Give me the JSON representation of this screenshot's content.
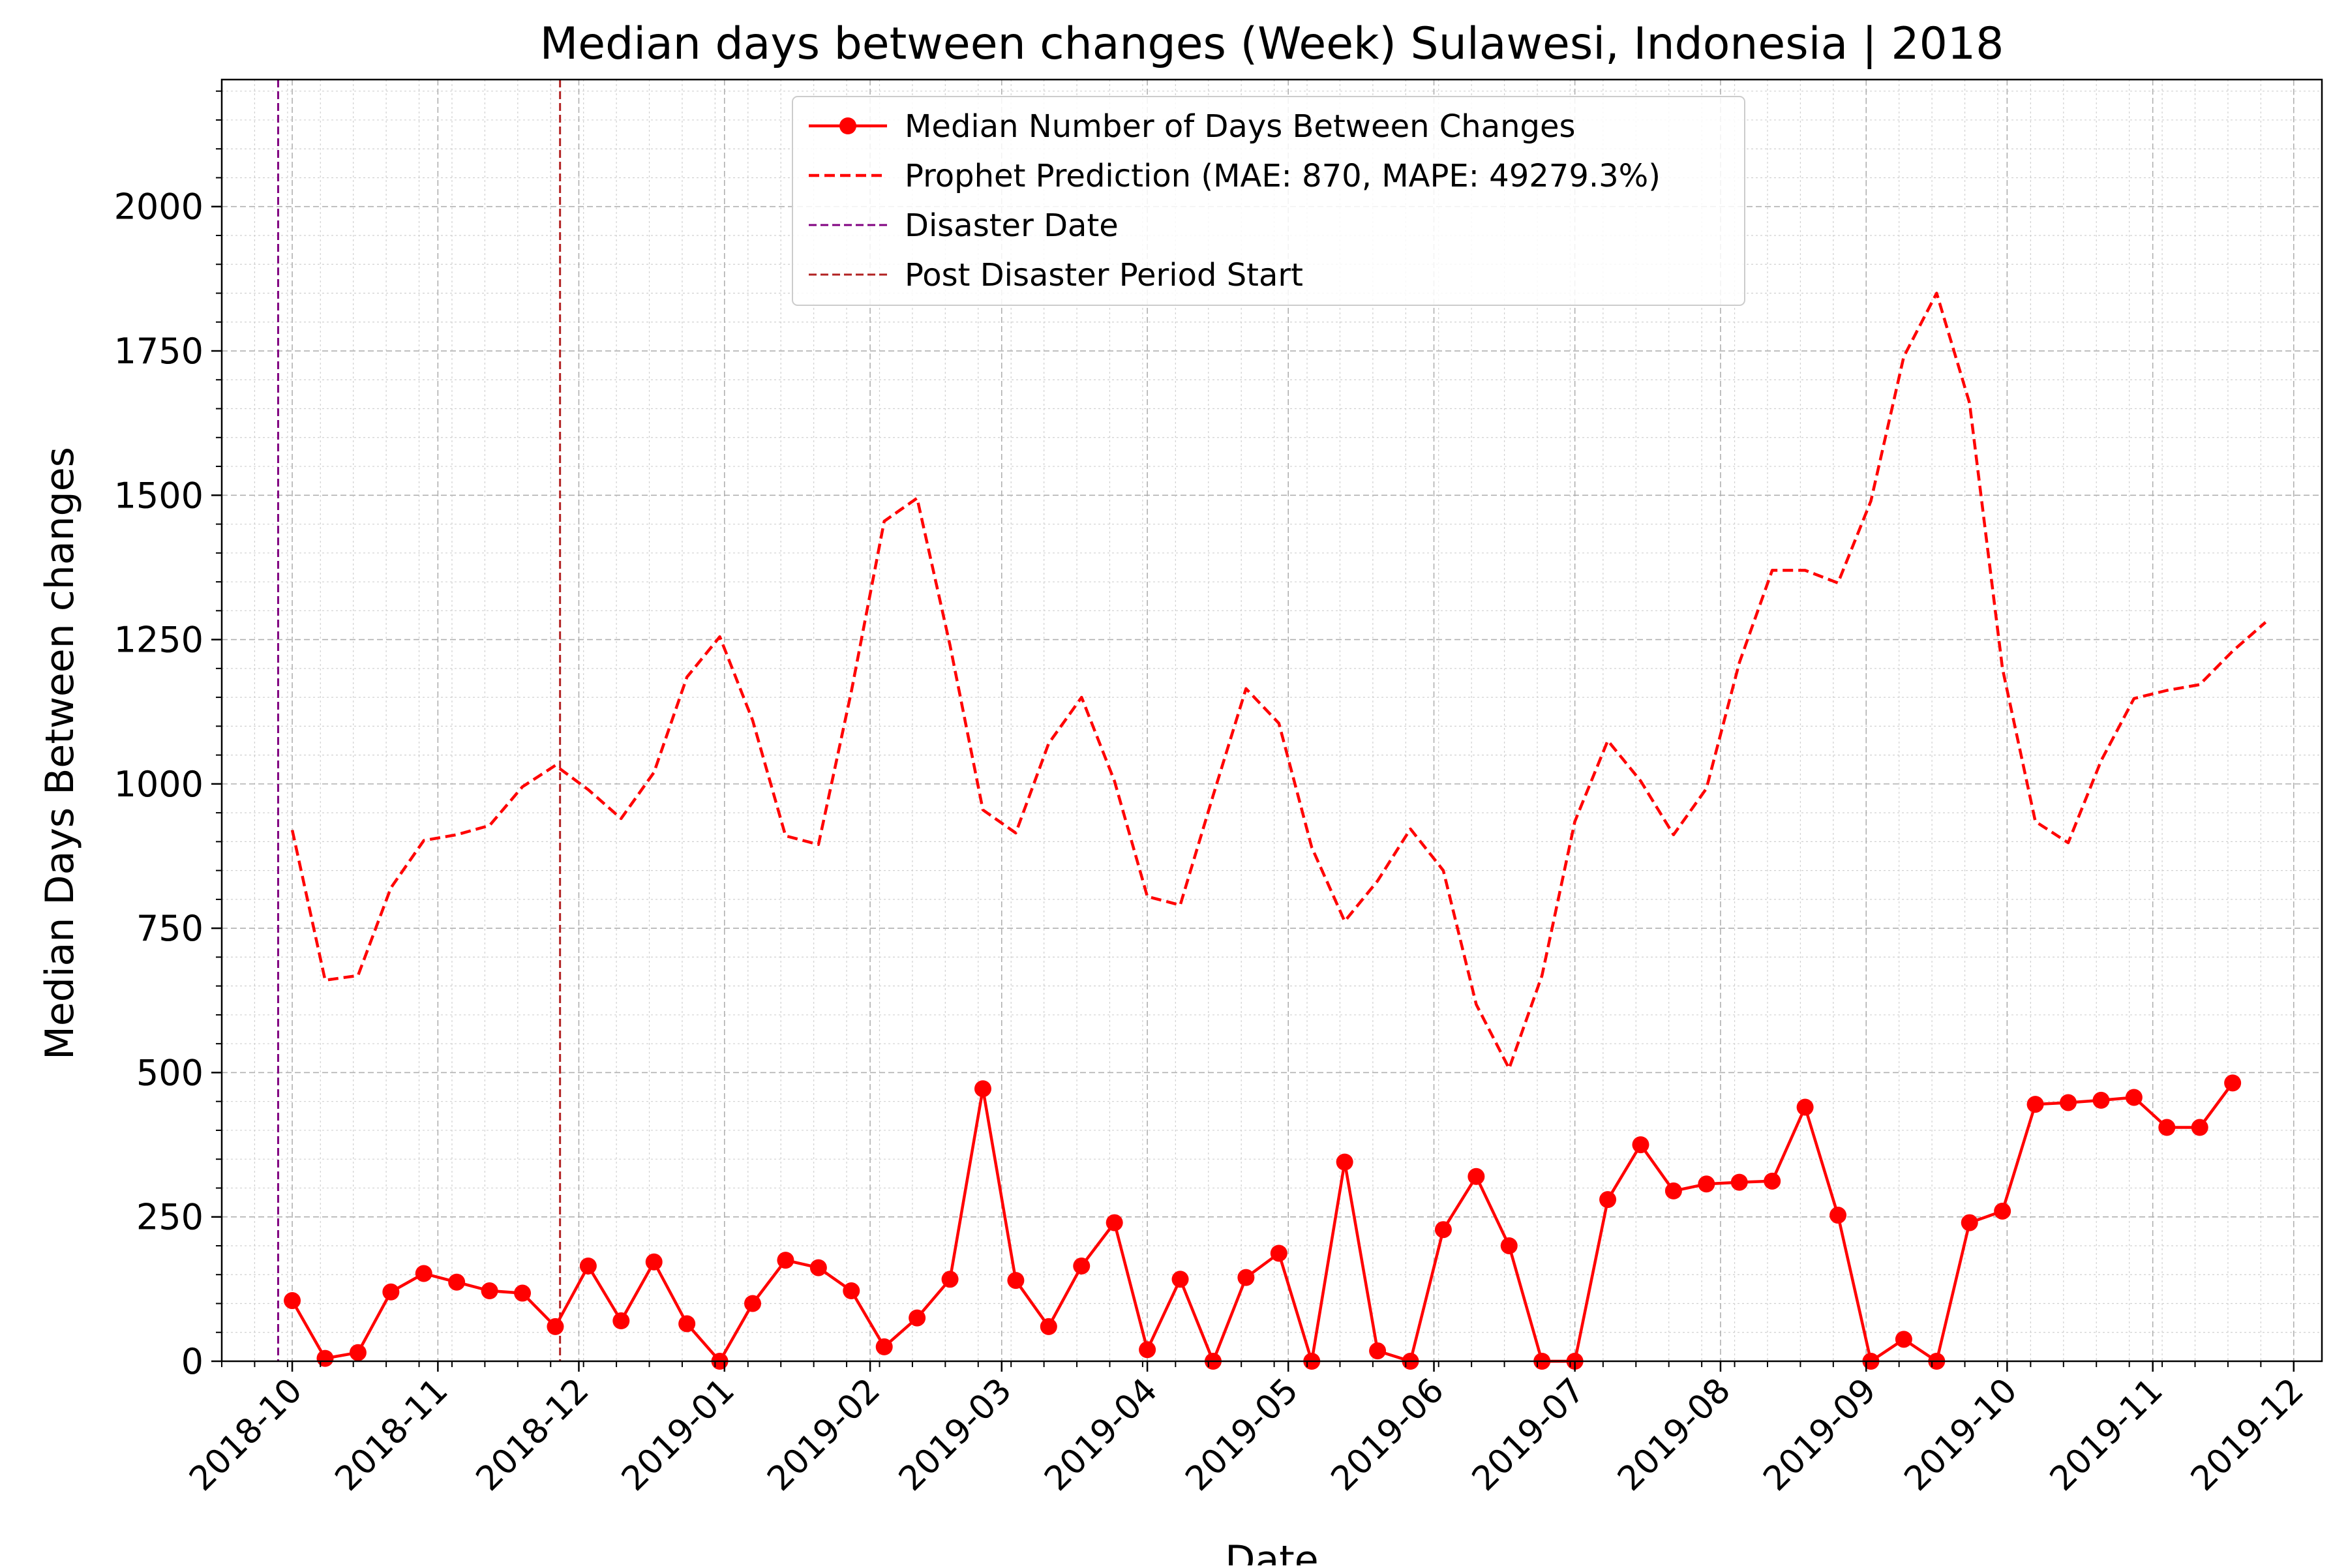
{
  "chart_data": {
    "type": "line",
    "title": "Median days between changes (Week) Sulawesi, Indonesia | 2018",
    "xlabel": "Date",
    "ylabel": "Median Days Between changes",
    "xlim": [
      "2018-09-16",
      "2019-12-07"
    ],
    "ylim": [
      0,
      2220
    ],
    "x_ticks": [
      "2018-10",
      "2018-11",
      "2018-12",
      "2019-01",
      "2019-02",
      "2019-03",
      "2019-04",
      "2019-05",
      "2019-06",
      "2019-07",
      "2019-08",
      "2019-09",
      "2019-10",
      "2019-11",
      "2019-12"
    ],
    "y_ticks": [
      0,
      250,
      500,
      750,
      1000,
      1250,
      1500,
      1750,
      2000
    ],
    "grid": true,
    "legend_position": "top-center",
    "series": [
      {
        "name": "Median Number of Days Between Changes",
        "style": "solid-with-markers",
        "color": "#ff0000",
        "x": [
          "2018-10-01",
          "2018-10-08",
          "2018-10-15",
          "2018-10-22",
          "2018-10-29",
          "2018-11-05",
          "2018-11-12",
          "2018-11-19",
          "2018-11-26",
          "2018-12-03",
          "2018-12-10",
          "2018-12-17",
          "2018-12-24",
          "2018-12-31",
          "2019-01-07",
          "2019-01-14",
          "2019-01-21",
          "2019-01-28",
          "2019-02-04",
          "2019-02-11",
          "2019-02-18",
          "2019-02-25",
          "2019-03-04",
          "2019-03-11",
          "2019-03-18",
          "2019-03-25",
          "2019-04-01",
          "2019-04-08",
          "2019-04-15",
          "2019-04-22",
          "2019-04-29",
          "2019-05-06",
          "2019-05-13",
          "2019-05-20",
          "2019-05-27",
          "2019-06-03",
          "2019-06-10",
          "2019-06-17",
          "2019-06-24",
          "2019-07-01",
          "2019-07-08",
          "2019-07-15",
          "2019-07-22",
          "2019-07-29",
          "2019-08-05",
          "2019-08-12",
          "2019-08-19",
          "2019-08-26",
          "2019-09-02",
          "2019-09-09",
          "2019-09-16",
          "2019-09-23",
          "2019-09-30",
          "2019-10-07",
          "2019-10-14",
          "2019-10-21",
          "2019-10-28",
          "2019-11-04",
          "2019-11-11",
          "2019-11-18"
        ],
        "values": [
          105,
          5,
          15,
          120,
          152,
          137,
          122,
          118,
          60,
          165,
          70,
          172,
          65,
          0,
          100,
          175,
          162,
          122,
          25,
          75,
          142,
          472,
          140,
          60,
          165,
          240,
          20,
          142,
          0,
          145,
          187,
          0,
          345,
          18,
          0,
          228,
          320,
          200,
          0,
          0,
          280,
          375,
          295,
          307,
          310,
          312,
          440,
          253,
          0,
          38,
          0,
          240,
          260,
          445,
          448,
          452,
          457,
          405,
          405,
          482
        ]
      },
      {
        "name": "Prophet Prediction (MAE: 870, MAPE: 49279.3%)",
        "style": "dashed",
        "color": "#ff0000",
        "x": [
          "2018-10-01",
          "2018-10-08",
          "2018-10-15",
          "2018-10-22",
          "2018-10-29",
          "2018-11-05",
          "2018-11-12",
          "2018-11-19",
          "2018-11-26",
          "2018-12-03",
          "2018-12-10",
          "2018-12-17",
          "2018-12-24",
          "2018-12-31",
          "2019-01-07",
          "2019-01-14",
          "2019-01-21",
          "2019-01-28",
          "2019-02-04",
          "2019-02-11",
          "2019-02-18",
          "2019-02-25",
          "2019-03-04",
          "2019-03-11",
          "2019-03-18",
          "2019-03-25",
          "2019-04-01",
          "2019-04-08",
          "2019-04-15",
          "2019-04-22",
          "2019-04-29",
          "2019-05-06",
          "2019-05-13",
          "2019-05-20",
          "2019-05-27",
          "2019-06-03",
          "2019-06-10",
          "2019-06-17",
          "2019-06-24",
          "2019-07-01",
          "2019-07-08",
          "2019-07-15",
          "2019-07-22",
          "2019-07-29",
          "2019-08-05",
          "2019-08-12",
          "2019-08-19",
          "2019-08-26",
          "2019-09-02",
          "2019-09-09",
          "2019-09-16",
          "2019-09-23",
          "2019-09-30",
          "2019-10-07",
          "2019-10-14",
          "2019-10-21",
          "2019-10-28",
          "2019-11-04",
          "2019-11-11",
          "2019-11-18",
          "2019-11-25"
        ],
        "values": [
          920,
          660,
          668,
          820,
          902,
          912,
          928,
          995,
          1032,
          990,
          940,
          1020,
          1185,
          1255,
          1110,
          910,
          895,
          1160,
          1455,
          1495,
          1240,
          955,
          915,
          1070,
          1150,
          1005,
          805,
          790,
          980,
          1165,
          1105,
          890,
          762,
          832,
          922,
          850,
          618,
          507,
          668,
          935,
          1075,
          1005,
          912,
          992,
          1210,
          1370,
          1370,
          1348,
          1490,
          1740,
          1850,
          1660,
          1200,
          935,
          898,
          1040,
          1148,
          1162,
          1172,
          1230,
          1280
        ]
      }
    ],
    "vlines": [
      {
        "name": "Disaster Date",
        "x": "2018-09-28",
        "color": "#800080",
        "style": "dashed"
      },
      {
        "name": "Post Disaster Period Start",
        "x": "2018-11-27",
        "color": "#b22222",
        "style": "dashed"
      }
    ],
    "legend": [
      {
        "label": "Median Number of Days Between Changes",
        "style": "solid-with-markers",
        "color": "#ff0000"
      },
      {
        "label": "Prophet Prediction (MAE: 870, MAPE: 49279.3%)",
        "style": "dashed",
        "color": "#ff0000"
      },
      {
        "label": "Disaster Date",
        "style": "dashed-thin",
        "color": "#800080"
      },
      {
        "label": "Post Disaster Period Start",
        "style": "dashed-thin",
        "color": "#b22222"
      }
    ]
  }
}
